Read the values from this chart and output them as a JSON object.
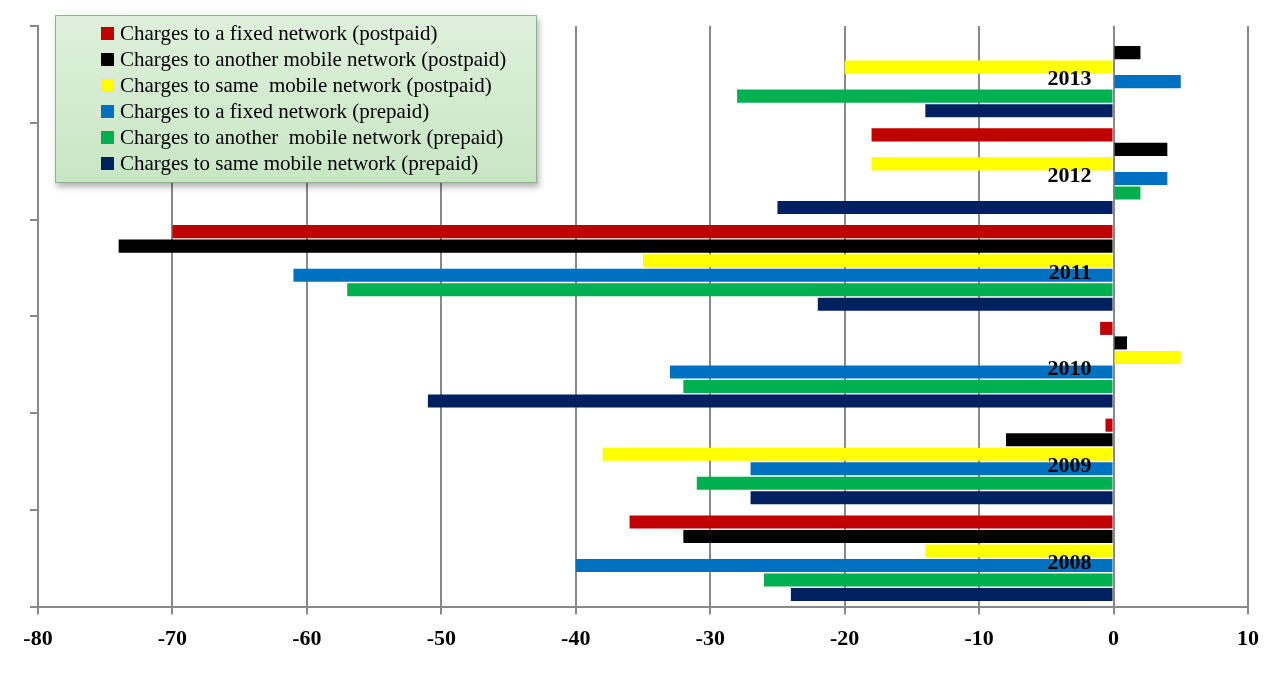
{
  "chart_data": {
    "type": "bar",
    "orientation": "horizontal",
    "categories": [
      "2013",
      "2012",
      "2011",
      "2010",
      "2009",
      "2008"
    ],
    "series": [
      {
        "name": "Charges to a fixed network (postpaid)",
        "color": "#c00000",
        "values": [
          null,
          -18,
          -70,
          -1,
          -0.6,
          -36
        ]
      },
      {
        "name": "Charges to another mobile network (postpaid)",
        "color": "#000000",
        "values": [
          2,
          4,
          -74,
          1,
          -8,
          -32
        ]
      },
      {
        "name": "Charges to same  mobile network (postpaid)",
        "color": "#ffff00",
        "values": [
          -20,
          -18,
          -35,
          5,
          -38,
          -14
        ]
      },
      {
        "name": "Charges to a fixed network (prepaid)",
        "color": "#0070c0",
        "values": [
          5,
          4,
          -61,
          -33,
          -27,
          -40
        ]
      },
      {
        "name": "Charges to another  mobile network (prepaid)",
        "color": "#00b050",
        "values": [
          -28,
          2,
          -57,
          -32,
          -31,
          -26
        ]
      },
      {
        "name": "Charges to same mobile network (prepaid)",
        "color": "#002060",
        "values": [
          -14,
          -25,
          -22,
          -51,
          -27,
          -24
        ]
      }
    ],
    "xlim": [
      -80,
      10
    ],
    "xticks": [
      -80,
      -70,
      -60,
      -50,
      -40,
      -30,
      -20,
      -10,
      0,
      10
    ],
    "grid": "x",
    "legend": "top left"
  }
}
